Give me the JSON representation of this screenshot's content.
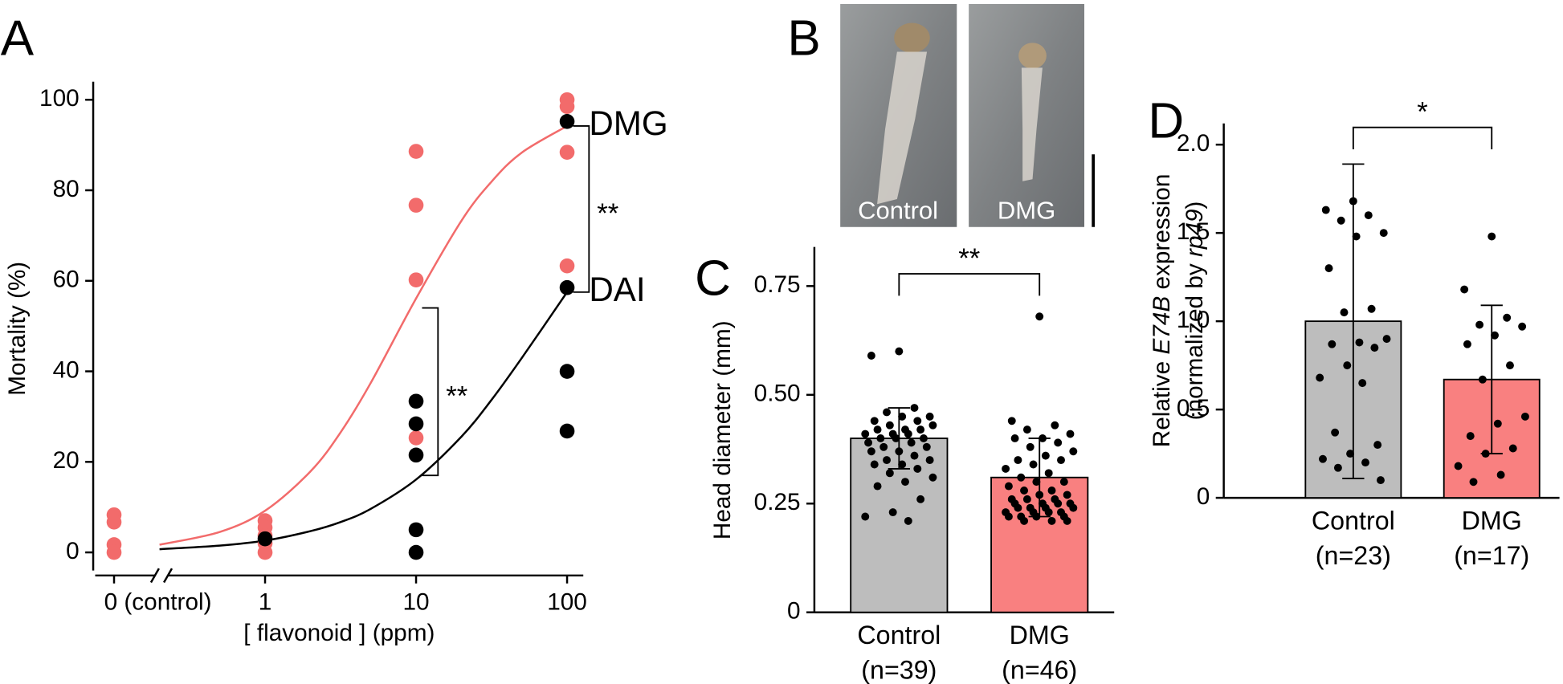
{
  "chart_data": [
    {
      "type": "scatter",
      "label": "A",
      "xlabel": "[ flavonoid ] (ppm)",
      "ylabel": "Mortality (%)",
      "xscale": "log",
      "xlim": [
        0.075,
        128
      ],
      "ylim": [
        -4,
        104
      ],
      "xticks": [
        {
          "value": 0.1,
          "label": "0 (control)"
        },
        1,
        10,
        100
      ],
      "yticks": [
        0,
        20,
        40,
        60,
        80,
        100
      ],
      "series": [
        {
          "name": "DMG",
          "color": "#f26b6b",
          "x": [
            0.1,
            0.1,
            0.1,
            0.1,
            1,
            1,
            1,
            1,
            1,
            10,
            10,
            10,
            10,
            100,
            100,
            100,
            100
          ],
          "values": [
            8.3,
            6.7,
            1.7,
            0,
            7,
            5.5,
            3.7,
            2,
            0,
            88.6,
            76.7,
            60.2,
            25.3,
            100,
            98.5,
            88.4,
            63.3
          ],
          "fit_x": [
            0.2,
            0.5,
            1,
            2,
            3.16,
            5,
            10,
            20,
            31.6,
            50,
            100
          ],
          "fit_values": [
            1.7,
            4.5,
            9.2,
            17.9,
            26.5,
            37.4,
            56.1,
            73.3,
            81.9,
            88.3,
            94.2
          ]
        },
        {
          "name": "DAI",
          "color": "#000000",
          "x": [
            1,
            10,
            10,
            10,
            10,
            10,
            100,
            100,
            100,
            100
          ],
          "values": [
            3,
            33.4,
            28.4,
            21.5,
            5,
            0,
            95.2,
            58.5,
            40,
            26.8
          ],
          "fit_x": [
            0.2,
            0.5,
            1,
            2,
            3.16,
            5,
            10,
            20,
            31.6,
            50,
            100
          ],
          "fit_values": [
            0.7,
            1.5,
            2.6,
            4.7,
            6.7,
            9.6,
            16.1,
            25.6,
            33.7,
            42.9,
            57.5
          ]
        }
      ],
      "brackets": [
        {
          "text": "**",
          "x": 10,
          "from": 54,
          "to": 17
        },
        {
          "text": "**",
          "x": 100,
          "from": 94.2,
          "to": 57.5
        }
      ]
    },
    {
      "type": "bar",
      "label": "C",
      "ylabel": "Head diameter (mm)",
      "categories": [
        "Control",
        "DMG"
      ],
      "category_notes": [
        "(n=39)",
        "(n=46)"
      ],
      "values": [
        0.4,
        0.31
      ],
      "errors": [
        0.07,
        0.09
      ],
      "colors": [
        "#bdbdbd",
        "#f98080"
      ],
      "ylim": [
        0,
        0.84
      ],
      "yticks": [
        0,
        0.25,
        {
          "value": 0.5,
          "label": "0.50"
        },
        0.75
      ],
      "significance": "**",
      "points": [
        [
          0.6,
          0.59,
          0.47,
          0.46,
          0.45,
          0.45,
          0.44,
          0.44,
          0.43,
          0.43,
          0.42,
          0.42,
          0.42,
          0.41,
          0.41,
          0.41,
          0.4,
          0.4,
          0.4,
          0.39,
          0.39,
          0.38,
          0.38,
          0.37,
          0.37,
          0.36,
          0.35,
          0.35,
          0.34,
          0.34,
          0.33,
          0.32,
          0.31,
          0.3,
          0.29,
          0.26,
          0.23,
          0.22,
          0.21
        ],
        [
          0.68,
          0.44,
          0.43,
          0.42,
          0.41,
          0.4,
          0.4,
          0.39,
          0.38,
          0.37,
          0.36,
          0.35,
          0.35,
          0.34,
          0.33,
          0.32,
          0.31,
          0.3,
          0.3,
          0.29,
          0.28,
          0.28,
          0.27,
          0.27,
          0.26,
          0.26,
          0.26,
          0.25,
          0.25,
          0.25,
          0.25,
          0.24,
          0.24,
          0.24,
          0.24,
          0.23,
          0.23,
          0.23,
          0.23,
          0.22,
          0.22,
          0.22,
          0.22,
          0.21,
          0.21,
          0.21
        ]
      ]
    },
    {
      "type": "bar",
      "label": "D",
      "ylabel": [
        [
          {
            "text": "Relative "
          },
          {
            "text": "E74B",
            "italic": true
          },
          {
            "text": " expression"
          }
        ],
        [
          {
            "text": "(normalized by "
          },
          {
            "text": "rp49",
            "italic": true
          },
          {
            "text": ")"
          }
        ]
      ],
      "categories": [
        "Control",
        "DMG"
      ],
      "category_notes": [
        "(n=23)",
        "(n=17)"
      ],
      "values": [
        1.0,
        0.67
      ],
      "errors": [
        0.89,
        0.42
      ],
      "colors": [
        "#bdbdbd",
        "#f98080"
      ],
      "ylim": [
        0,
        2.12
      ],
      "yticks": [
        0,
        0.5,
        {
          "value": 1,
          "label": "1.0"
        },
        1.5,
        {
          "value": 2,
          "label": "2.0"
        }
      ],
      "significance": "*",
      "points": [
        [
          1.68,
          1.63,
          1.6,
          1.57,
          1.5,
          1.48,
          1.3,
          1.07,
          1.05,
          0.9,
          0.88,
          0.87,
          0.85,
          0.75,
          0.68,
          0.65,
          0.37,
          0.3,
          0.25,
          0.22,
          0.2,
          0.17,
          0.1
        ],
        [
          1.48,
          1.18,
          1.02,
          0.98,
          0.97,
          0.92,
          0.87,
          0.75,
          0.67,
          0.46,
          0.42,
          0.35,
          0.28,
          0.25,
          0.18,
          0.13,
          0.09
        ]
      ]
    }
  ],
  "panel_b": {
    "label": "B",
    "captions": [
      "Control",
      "DMG"
    ]
  }
}
